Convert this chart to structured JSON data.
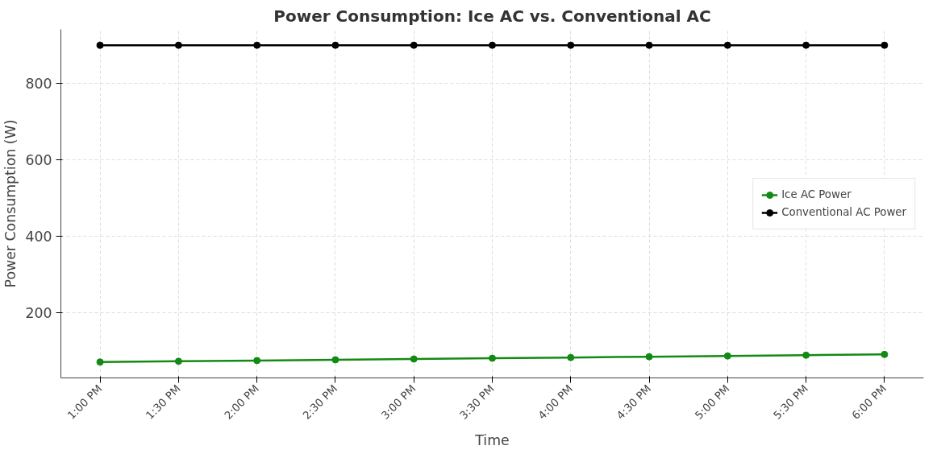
{
  "chart_data": {
    "type": "line",
    "title": "Power Consumption: Ice AC vs. Conventional AC",
    "xlabel": "Time",
    "ylabel": "Power Consumption (W)",
    "categories": [
      "1:00 PM",
      "1:30 PM",
      "2:00 PM",
      "2:30 PM",
      "3:00 PM",
      "3:30 PM",
      "4:00 PM",
      "4:30 PM",
      "5:00 PM",
      "5:30 PM",
      "6:00 PM"
    ],
    "series": [
      {
        "name": "Ice AC Power",
        "color": "#138a13",
        "values": [
          70,
          72,
          74,
          76,
          78,
          80,
          82,
          84,
          86,
          88,
          90
        ]
      },
      {
        "name": "Conventional AC Power",
        "color": "#000000",
        "values": [
          900,
          900,
          900,
          900,
          900,
          900,
          900,
          900,
          900,
          900,
          900
        ]
      }
    ],
    "ylim": [
      28.5,
      941.5
    ],
    "yticks": [
      200,
      400,
      600,
      800
    ],
    "grid": true,
    "legend": "right",
    "marker": "circle",
    "line_style": "solid"
  }
}
